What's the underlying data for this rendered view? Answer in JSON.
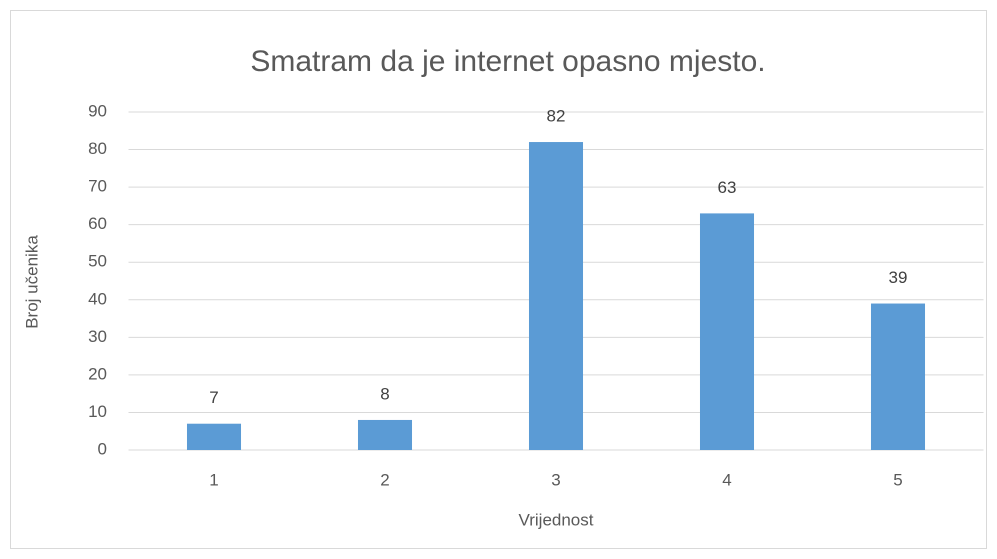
{
  "chart_data": {
    "type": "bar",
    "title": "Smatram da je internet opasno mjesto.",
    "x_label": "Vrijednost",
    "y_label": "Broj učenika",
    "categories": [
      "1",
      "2",
      "3",
      "4",
      "5"
    ],
    "values": [
      7,
      8,
      82,
      63,
      39
    ],
    "color": "#5b9bd5",
    "ylim": [
      0,
      90
    ],
    "yticks": [
      0,
      10,
      20,
      30,
      40,
      50,
      60,
      70,
      80,
      90
    ],
    "grid": true,
    "data_labels": true
  }
}
